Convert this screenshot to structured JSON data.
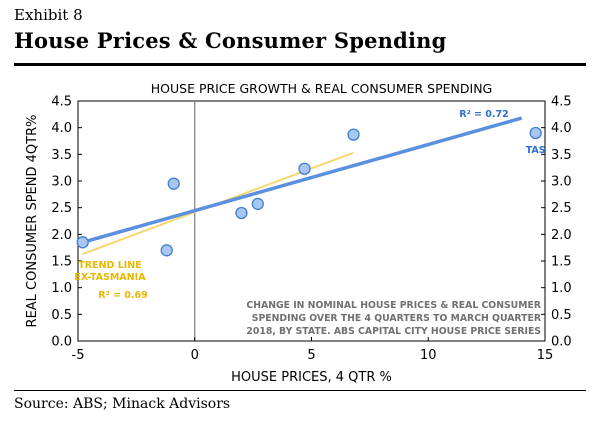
{
  "header": {
    "exhibit": "Exhibit 8",
    "title": "House Prices & Consumer Spending"
  },
  "footer": {
    "source": "Source: ABS; Minack Advisors"
  },
  "chart_data": {
    "type": "scatter",
    "title": "HOUSE PRICE GROWTH & REAL CONSUMER SPENDING",
    "xlabel": "HOUSE PRICES, 4 QTR %",
    "ylabel": "REAL CONSUMER SPEND 4QTR%",
    "xlim": [
      -5,
      15
    ],
    "ylim": [
      0,
      4.5
    ],
    "x_ticks": [
      -5,
      0,
      5,
      10,
      15
    ],
    "x_tick_labels": [
      "-5",
      "0",
      "5",
      "10",
      "15"
    ],
    "y_ticks": [
      0,
      0.5,
      1,
      1.5,
      2,
      2.5,
      3,
      3.5,
      4,
      4.5
    ],
    "y_tick_labels": [
      "0.0",
      "0.5",
      "1.0",
      "1.5",
      "2.0",
      "2.5",
      "3.0",
      "3.5",
      "4.0",
      "4.5"
    ],
    "grid": false,
    "points": [
      {
        "x": -4.8,
        "y": 1.85,
        "label": ""
      },
      {
        "x": -1.2,
        "y": 1.7,
        "label": ""
      },
      {
        "x": -0.9,
        "y": 2.95,
        "label": ""
      },
      {
        "x": 2.0,
        "y": 2.4,
        "label": ""
      },
      {
        "x": 2.7,
        "y": 2.57,
        "label": ""
      },
      {
        "x": 4.7,
        "y": 3.23,
        "label": ""
      },
      {
        "x": 6.8,
        "y": 3.87,
        "label": ""
      },
      {
        "x": 14.6,
        "y": 3.9,
        "label": "TAS"
      }
    ],
    "trend_lines": [
      {
        "label": "R² = 0.72",
        "x": [
          -4.8,
          14.0
        ],
        "y": [
          1.85,
          4.18
        ],
        "color": "#5b8fe0"
      },
      {
        "label": "TREND LINE EX-TASMANIA",
        "label_line1": "TREND LINE",
        "label_line2": "EX-TASMANIA",
        "r2_label": "R² = 0.69",
        "x": [
          -4.8,
          6.8
        ],
        "y": [
          1.63,
          3.53
        ],
        "color": "#f5d76e"
      }
    ],
    "note_lines": [
      "CHANGE IN NOMINAL HOUSE PRICES & REAL CONSUMER",
      "SPENDING OVER THE 4 QUARTERS TO MARCH QUARTER",
      "2018, BY STATE.  ABS CAPITAL CITY HOUSE PRICE SERIES"
    ],
    "colors": {
      "points_fill": "#a7c7f2",
      "points_stroke": "#3f7fd1",
      "all_trend": "#5b8fe0",
      "ex_tas_trend": "#f5d76e",
      "ex_tas_label": "#e8b800",
      "r2_all_label": "#2d6fcf",
      "axis": "#000000",
      "zero_line": "#808080",
      "note_text": "#707070"
    }
  }
}
